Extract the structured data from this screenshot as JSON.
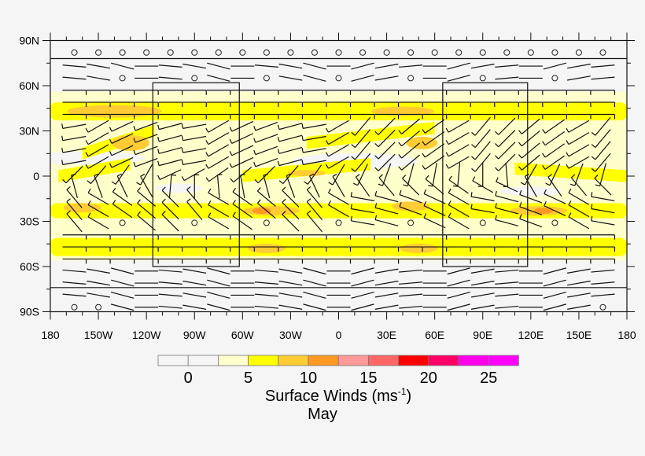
{
  "map": {
    "lat_ticks": [
      {
        "value": 90,
        "label": "90N"
      },
      {
        "value": 60,
        "label": "60N"
      },
      {
        "value": 30,
        "label": "30N"
      },
      {
        "value": 0,
        "label": "0"
      },
      {
        "value": -30,
        "label": "30S"
      },
      {
        "value": -60,
        "label": "60S"
      },
      {
        "value": -90,
        "label": "90S"
      }
    ],
    "lon_ticks": [
      {
        "value": -180,
        "label": "180"
      },
      {
        "value": -150,
        "label": "150W"
      },
      {
        "value": -120,
        "label": "120W"
      },
      {
        "value": -90,
        "label": "90W"
      },
      {
        "value": -60,
        "label": "60W"
      },
      {
        "value": -30,
        "label": "30W"
      },
      {
        "value": 0,
        "label": "0"
      },
      {
        "value": 30,
        "label": "30E"
      },
      {
        "value": 60,
        "label": "60E"
      },
      {
        "value": 90,
        "label": "90E"
      },
      {
        "value": 120,
        "label": "120E"
      },
      {
        "value": 150,
        "label": "150E"
      },
      {
        "value": 180,
        "label": "180"
      }
    ],
    "regions": [
      {
        "lon": [
          -116,
          -62
        ],
        "lat": [
          -60,
          62
        ]
      },
      {
        "lon": [
          65,
          118
        ],
        "lat": [
          -60,
          62
        ]
      }
    ],
    "latitude_lines": [
      78,
      -74
    ]
  },
  "colorbar": {
    "colors": [
      "#f5f5f5",
      "#f5f5f5",
      "#ffffcc",
      "#ffff00",
      "#ffcc33",
      "#ff9922",
      "#ff9999",
      "#ff6666",
      "#ff0000",
      "#ff0066",
      "#ff00ee",
      "#ff00ff"
    ],
    "labels": [
      "0",
      "5",
      "10",
      "15",
      "20",
      "25"
    ],
    "title": "Surface Winds (ms",
    "title_superscript": "-1",
    "title_close": ")",
    "subtitle": "May"
  }
}
